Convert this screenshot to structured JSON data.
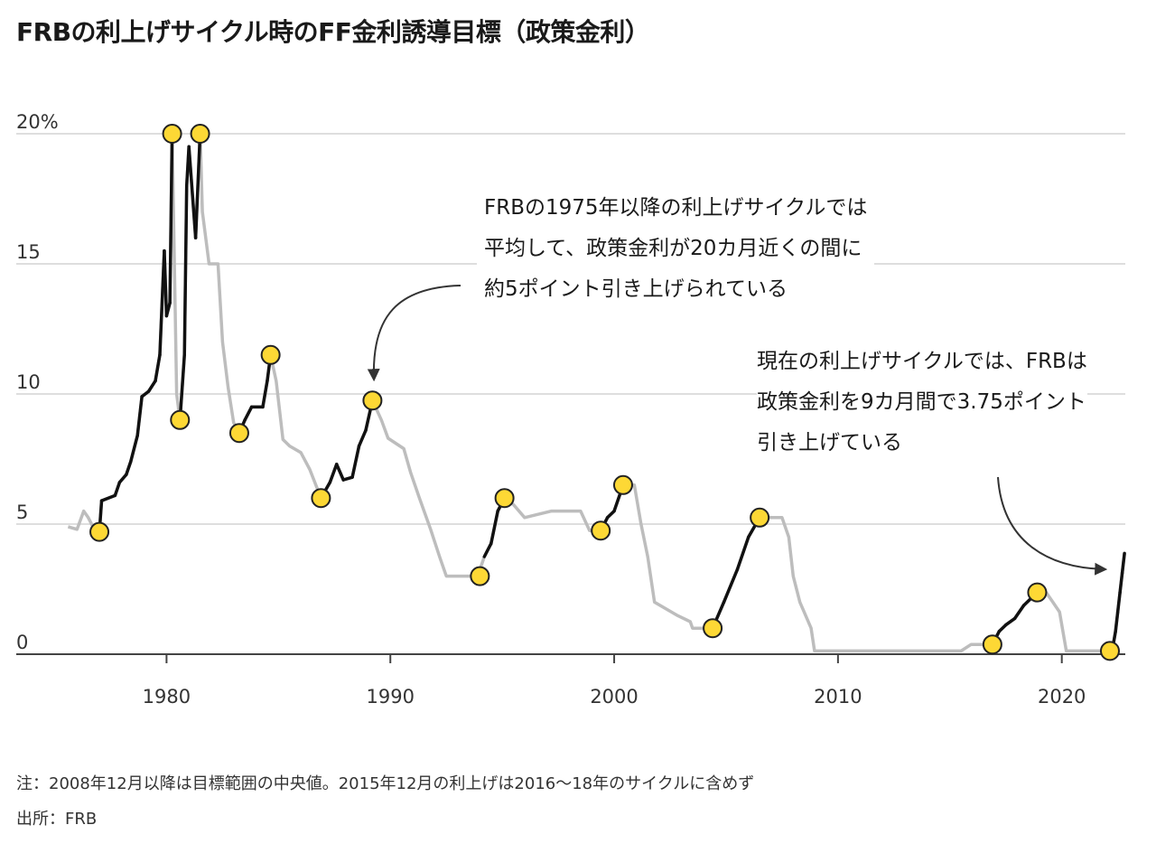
{
  "title": "FRBの利上げサイクル時のFF金利誘導目標（政策金利）",
  "annotations": {
    "avg_cycle": "FRBの1975年以降の利上げサイクルでは\n平均して、政策金利が20カ月近くの間に\n約5ポイント引き上げられている",
    "current_cycle": "現在の利上げサイクルでは、FRBは\n政策金利を9カ月間で3.75ポイント\n引き上げている"
  },
  "footnote": "注：2008年12月以降は目標範囲の中央値。2015年12月の利上げは2016～18年のサイクルに含めず",
  "source": "出所：FRB",
  "colors": {
    "hike": "#111111",
    "other": "#bdbdbd",
    "marker_fill": "#fdd835",
    "marker_stroke": "#222222",
    "grid": "#dedede"
  },
  "chart_data": {
    "type": "line",
    "title": "FRBの利上げサイクル時のFF金利誘導目標（政策金利）",
    "xlabel": "",
    "ylabel": "",
    "xlim": [
      1975.4,
      2022.95
    ],
    "ylim": [
      0,
      20
    ],
    "y_ticks": [
      0,
      5,
      10,
      15,
      20
    ],
    "y_tick_labels": [
      "0",
      "5",
      "10",
      "15",
      "20%"
    ],
    "x_ticks": [
      1980,
      1990,
      2000,
      2010,
      2020
    ],
    "grid": true,
    "series": [
      {
        "points": [
          [
            1975.6,
            4.9
          ],
          [
            1976.0,
            4.8
          ],
          [
            1976.3,
            5.5
          ],
          [
            1976.5,
            5.25
          ],
          [
            1976.8,
            4.75
          ],
          [
            1977.0,
            4.7
          ],
          [
            1977.1,
            5.9
          ],
          [
            1977.7,
            6.1
          ],
          [
            1977.9,
            6.6
          ],
          [
            1978.2,
            6.9
          ],
          [
            1978.4,
            7.4
          ],
          [
            1978.7,
            8.4
          ],
          [
            1978.9,
            9.9
          ],
          [
            1979.2,
            10.1
          ],
          [
            1979.5,
            10.5
          ],
          [
            1979.7,
            11.5
          ],
          [
            1979.9,
            15.5
          ],
          [
            1980.0,
            13.0
          ],
          [
            1980.15,
            13.5
          ],
          [
            1980.25,
            20.0
          ],
          [
            1980.45,
            10.0
          ],
          [
            1980.6,
            9.0
          ],
          [
            1980.8,
            11.5
          ],
          [
            1980.9,
            18.0
          ],
          [
            1981.0,
            19.5
          ],
          [
            1981.3,
            16.0
          ],
          [
            1981.5,
            20.0
          ],
          [
            1981.6,
            17.0
          ],
          [
            1981.9,
            15.0
          ],
          [
            1982.3,
            15.0
          ],
          [
            1982.5,
            12.0
          ],
          [
            1982.75,
            10.25
          ],
          [
            1983.0,
            8.9
          ],
          [
            1983.25,
            8.5
          ],
          [
            1983.5,
            9.0
          ],
          [
            1983.8,
            9.5
          ],
          [
            1984.3,
            9.5
          ],
          [
            1984.5,
            10.5
          ],
          [
            1984.65,
            11.5
          ],
          [
            1984.9,
            10.5
          ],
          [
            1985.2,
            8.25
          ],
          [
            1985.5,
            8.0
          ],
          [
            1986.0,
            7.75
          ],
          [
            1986.4,
            7.1
          ],
          [
            1986.9,
            6.0
          ],
          [
            1987.3,
            6.6
          ],
          [
            1987.6,
            7.3
          ],
          [
            1987.9,
            6.7
          ],
          [
            1988.3,
            6.8
          ],
          [
            1988.6,
            8.0
          ],
          [
            1988.9,
            8.6
          ],
          [
            1989.2,
            9.75
          ],
          [
            1989.6,
            9.0
          ],
          [
            1989.9,
            8.3
          ],
          [
            1990.6,
            7.9
          ],
          [
            1990.9,
            7.0
          ],
          [
            1991.3,
            6.0
          ],
          [
            1991.8,
            4.8
          ],
          [
            1992.2,
            3.75
          ],
          [
            1992.5,
            3.0
          ],
          [
            1993.9,
            3.0
          ],
          [
            1994.2,
            3.75
          ],
          [
            1994.5,
            4.25
          ],
          [
            1994.8,
            5.5
          ],
          [
            1995.1,
            6.0
          ],
          [
            1995.5,
            5.75
          ],
          [
            1996.0,
            5.25
          ],
          [
            1997.2,
            5.5
          ],
          [
            1998.5,
            5.5
          ],
          [
            1998.9,
            4.75
          ],
          [
            1999.4,
            4.75
          ],
          [
            1999.7,
            5.25
          ],
          [
            2000.0,
            5.5
          ],
          [
            2000.4,
            6.5
          ],
          [
            2000.9,
            6.5
          ],
          [
            2001.2,
            5.0
          ],
          [
            2001.5,
            3.75
          ],
          [
            2001.8,
            2.0
          ],
          [
            2002.8,
            1.5
          ],
          [
            2003.4,
            1.25
          ],
          [
            2003.5,
            1.0
          ],
          [
            2004.4,
            1.0
          ],
          [
            2004.9,
            2.0
          ],
          [
            2005.5,
            3.25
          ],
          [
            2006.0,
            4.5
          ],
          [
            2006.5,
            5.25
          ],
          [
            2007.5,
            5.25
          ],
          [
            2007.8,
            4.5
          ],
          [
            2008.0,
            3.0
          ],
          [
            2008.3,
            2.0
          ],
          [
            2008.8,
            1.0
          ],
          [
            2008.95,
            0.125
          ],
          [
            2015.5,
            0.125
          ],
          [
            2015.95,
            0.375
          ],
          [
            2016.9,
            0.375
          ],
          [
            2017.2,
            0.875
          ],
          [
            2017.5,
            1.125
          ],
          [
            2017.9,
            1.375
          ],
          [
            2018.3,
            1.875
          ],
          [
            2018.9,
            2.375
          ],
          [
            2019.3,
            2.375
          ],
          [
            2019.6,
            2.0
          ],
          [
            2019.9,
            1.625
          ],
          [
            2020.2,
            0.125
          ],
          [
            2022.15,
            0.125
          ],
          [
            2022.3,
            0.375
          ],
          [
            2022.4,
            0.875
          ],
          [
            2022.5,
            1.625
          ],
          [
            2022.6,
            2.375
          ],
          [
            2022.7,
            3.125
          ],
          [
            2022.8,
            3.875
          ]
        ]
      }
    ],
    "hike_cycles": [
      {
        "start": 1977.0,
        "end": 1980.25
      },
      {
        "start": 1980.6,
        "end": 1981.5
      },
      {
        "start": 1983.25,
        "end": 1984.65
      },
      {
        "start": 1986.9,
        "end": 1989.2
      },
      {
        "start": 1994.0,
        "end": 1995.1
      },
      {
        "start": 1999.4,
        "end": 2000.4
      },
      {
        "start": 2004.4,
        "end": 2006.5
      },
      {
        "start": 2016.9,
        "end": 2018.9
      },
      {
        "start": 2022.15,
        "end": 2022.95
      }
    ],
    "markers": [
      [
        1977.0,
        4.7
      ],
      [
        1980.25,
        20.0
      ],
      [
        1981.5,
        20.0
      ],
      [
        1980.6,
        9.0
      ],
      [
        1983.25,
        8.5
      ],
      [
        1984.65,
        11.5
      ],
      [
        1986.9,
        6.0
      ],
      [
        1989.2,
        9.75
      ],
      [
        1994.0,
        3.0
      ],
      [
        1995.1,
        6.0
      ],
      [
        1999.4,
        4.75
      ],
      [
        2000.4,
        6.5
      ],
      [
        2004.4,
        1.0
      ],
      [
        2006.5,
        5.25
      ],
      [
        2016.9,
        0.375
      ],
      [
        2018.9,
        2.375
      ],
      [
        2022.15,
        0.125
      ]
    ]
  }
}
